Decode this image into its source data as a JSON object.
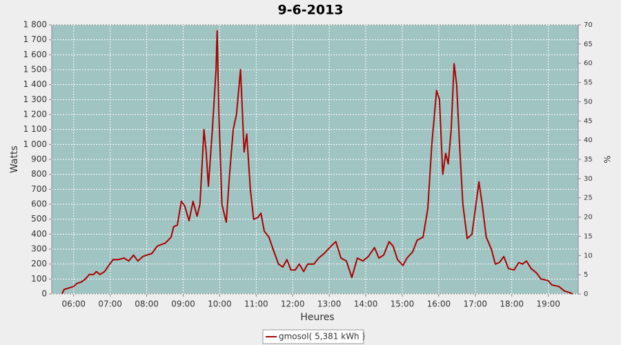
{
  "chart_data": {
    "type": "line",
    "title": "9-6-2013",
    "x_label": "Heures",
    "y_label": "Watts",
    "y2_label": "%",
    "x": [
      5.68,
      5.74,
      5.87,
      6.0,
      6.09,
      6.21,
      6.32,
      6.43,
      6.55,
      6.62,
      6.72,
      6.85,
      6.96,
      7.08,
      7.23,
      7.38,
      7.51,
      7.64,
      7.76,
      7.89,
      8.0,
      8.14,
      8.29,
      8.51,
      8.67,
      8.74,
      8.84,
      8.95,
      9.04,
      9.16,
      9.27,
      9.38,
      9.46,
      9.57,
      9.63,
      9.69,
      9.8,
      9.9,
      9.93,
      9.98,
      10.06,
      10.18,
      10.27,
      10.37,
      10.46,
      10.57,
      10.67,
      10.74,
      10.84,
      10.93,
      11.04,
      11.13,
      11.22,
      11.35,
      11.46,
      11.61,
      11.73,
      11.84,
      11.95,
      12.07,
      12.18,
      12.3,
      12.41,
      12.58,
      12.71,
      12.86,
      13.05,
      13.18,
      13.32,
      13.47,
      13.62,
      13.77,
      13.92,
      14.07,
      14.24,
      14.36,
      14.49,
      14.64,
      14.75,
      14.87,
      15.02,
      15.13,
      15.28,
      15.41,
      15.57,
      15.7,
      15.81,
      15.94,
      16.02,
      16.11,
      16.19,
      16.26,
      16.34,
      16.42,
      16.49,
      16.57,
      16.66,
      16.78,
      16.91,
      17.02,
      17.1,
      17.19,
      17.3,
      17.44,
      17.55,
      17.66,
      17.78,
      17.91,
      18.06,
      18.19,
      18.3,
      18.4,
      18.53,
      18.68,
      18.8,
      18.99,
      19.1,
      19.29,
      19.44,
      19.57,
      19.67
    ],
    "series": [
      {
        "name": "gmosol( 5,381 kWh )",
        "color": "#aa0000",
        "values": [
          0,
          30,
          40,
          50,
          70,
          80,
          100,
          130,
          130,
          150,
          130,
          150,
          190,
          230,
          230,
          240,
          220,
          260,
          220,
          250,
          260,
          270,
          320,
          340,
          380,
          450,
          460,
          620,
          590,
          490,
          620,
          520,
          600,
          1100,
          950,
          720,
          1100,
          1500,
          1760,
          1200,
          600,
          480,
          800,
          1100,
          1200,
          1500,
          950,
          1070,
          700,
          500,
          510,
          540,
          420,
          380,
          300,
          200,
          180,
          230,
          160,
          160,
          200,
          150,
          200,
          200,
          240,
          270,
          320,
          350,
          240,
          220,
          110,
          240,
          220,
          250,
          310,
          240,
          260,
          350,
          320,
          230,
          190,
          240,
          280,
          360,
          380,
          570,
          1000,
          1360,
          1300,
          800,
          940,
          870,
          1100,
          1540,
          1400,
          1000,
          600,
          370,
          400,
          600,
          750,
          600,
          380,
          300,
          200,
          210,
          250,
          170,
          160,
          210,
          200,
          220,
          170,
          140,
          100,
          90,
          60,
          50,
          20,
          10,
          0
        ]
      }
    ],
    "xlim": [
      5.4,
      19.82
    ],
    "xticks": [
      {
        "value": 6,
        "label": "06:00"
      },
      {
        "value": 7,
        "label": "07:00"
      },
      {
        "value": 8,
        "label": "08:00"
      },
      {
        "value": 9,
        "label": "09:00"
      },
      {
        "value": 10,
        "label": "10:00"
      },
      {
        "value": 11,
        "label": "11:00"
      },
      {
        "value": 12,
        "label": "12:00"
      },
      {
        "value": 13,
        "label": "13:00"
      },
      {
        "value": 14,
        "label": "14:00"
      },
      {
        "value": 15,
        "label": "15:00"
      },
      {
        "value": 16,
        "label": "16:00"
      },
      {
        "value": 17,
        "label": "17:00"
      },
      {
        "value": 18,
        "label": "18:00"
      },
      {
        "value": 19,
        "label": "19:00"
      }
    ],
    "ylim": [
      0,
      1800
    ],
    "yticks": [
      0,
      100,
      200,
      300,
      400,
      500,
      600,
      700,
      800,
      900,
      {
        "value": 1000,
        "label": "1 000"
      },
      {
        "value": 1100,
        "label": "1 100"
      },
      {
        "value": 1200,
        "label": "1 200"
      },
      {
        "value": 1300,
        "label": "1 300"
      },
      {
        "value": 1400,
        "label": "1 400"
      },
      {
        "value": 1500,
        "label": "1 500"
      },
      {
        "value": 1600,
        "label": "1 600"
      },
      {
        "value": 1700,
        "label": "1 700"
      },
      {
        "value": 1800,
        "label": "1 800"
      }
    ],
    "y2lim": [
      0,
      70
    ],
    "y2ticks": [
      0,
      5,
      10,
      15,
      20,
      25,
      30,
      35,
      40,
      45,
      50,
      55,
      60,
      65,
      70
    ],
    "grid": true,
    "legend": "bottom"
  }
}
